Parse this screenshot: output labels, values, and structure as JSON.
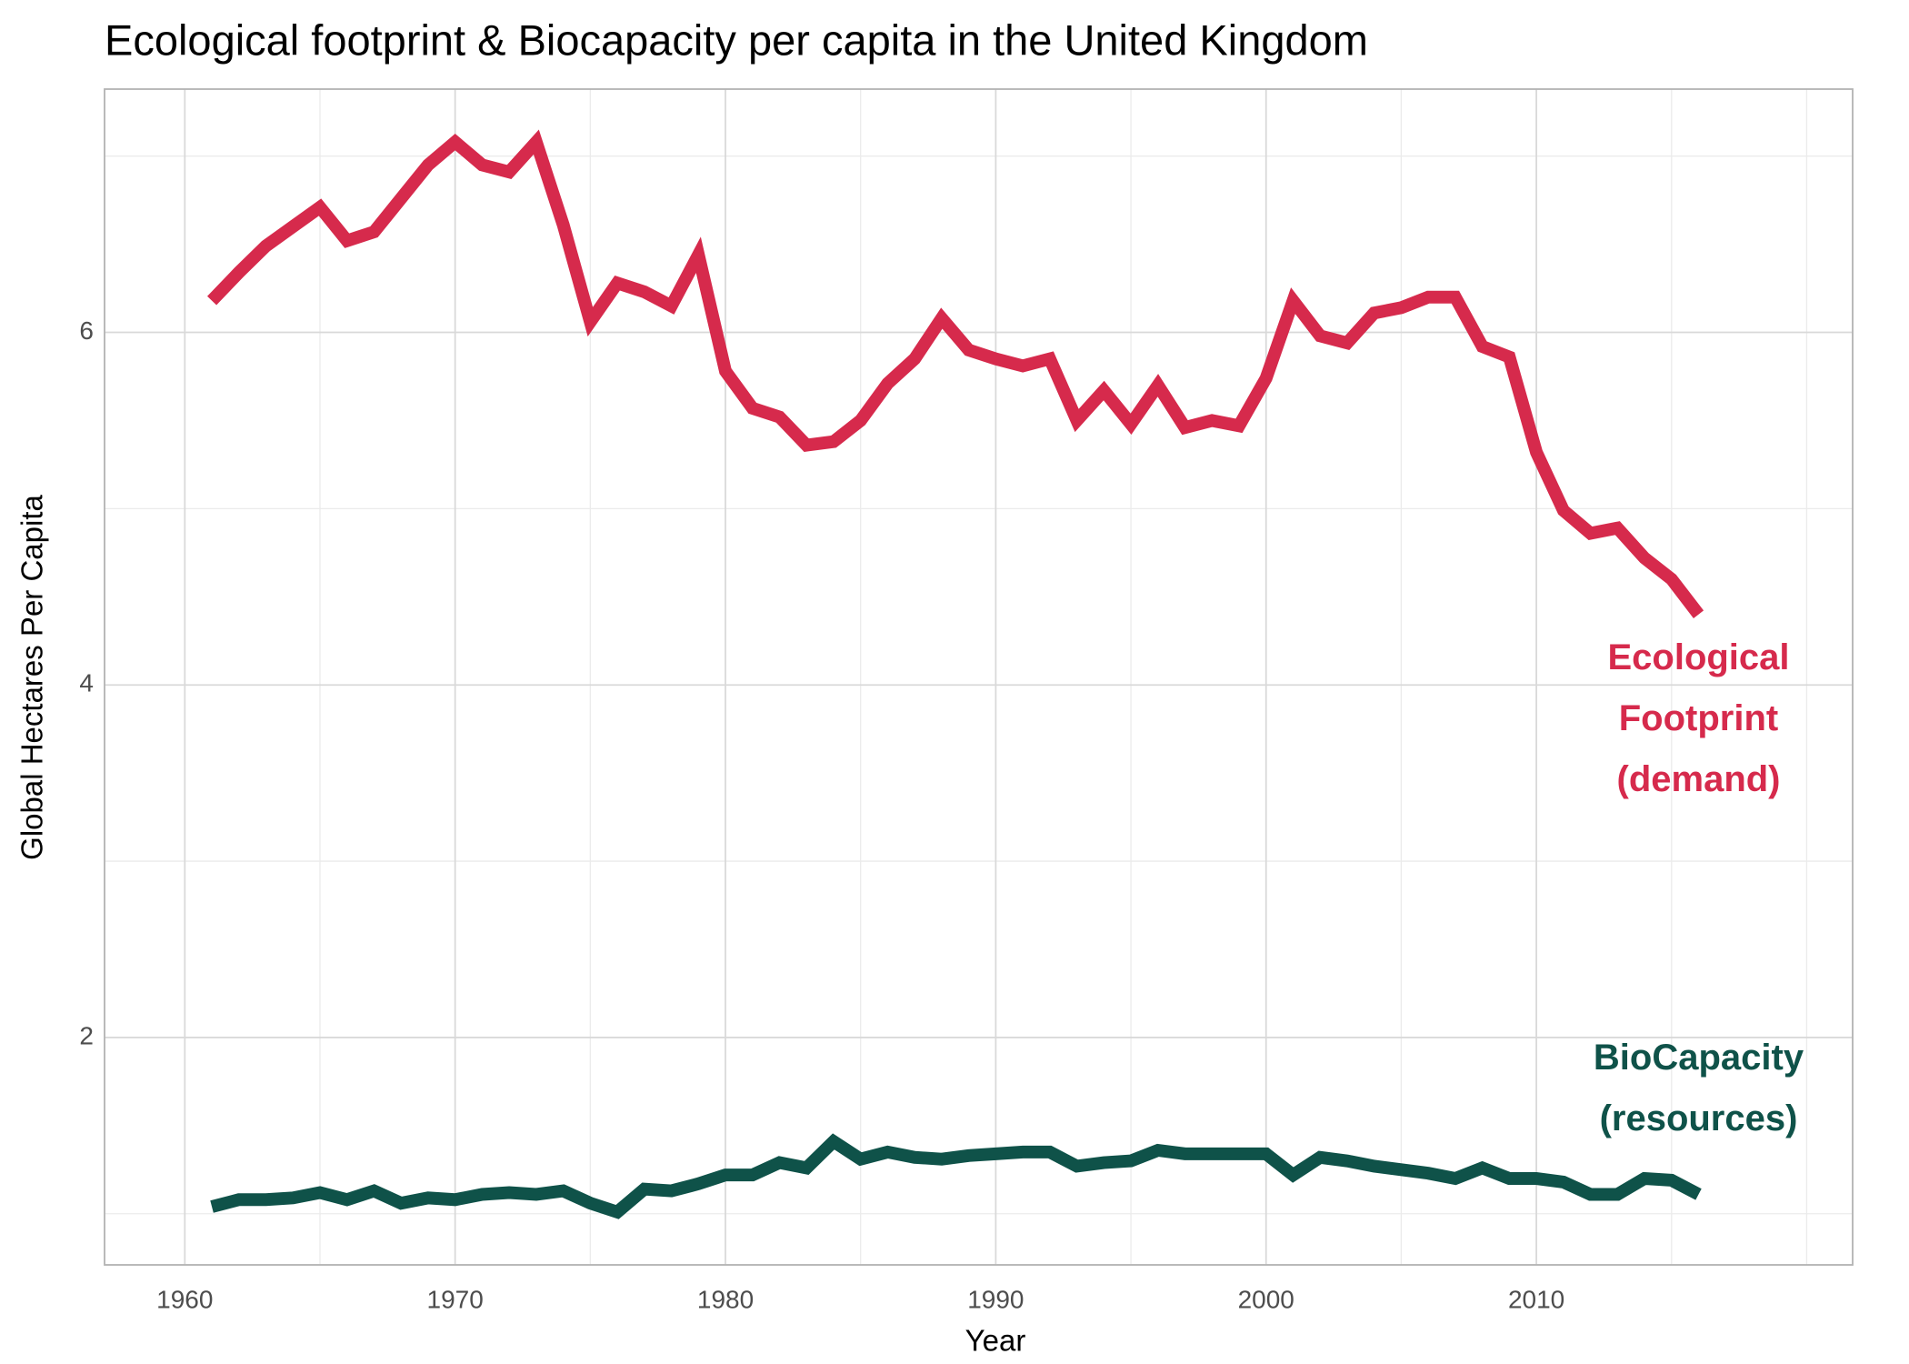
{
  "chart_data": {
    "type": "line",
    "title": "Ecological footprint & Biocapacity per capita in the United Kingdom",
    "x_label": "Year",
    "y_label": "Global Hectares Per Capita",
    "x": [
      1961,
      1962,
      1963,
      1964,
      1965,
      1966,
      1967,
      1968,
      1969,
      1970,
      1971,
      1972,
      1973,
      1974,
      1975,
      1976,
      1977,
      1978,
      1979,
      1980,
      1981,
      1982,
      1983,
      1984,
      1985,
      1986,
      1987,
      1988,
      1989,
      1990,
      1991,
      1992,
      1993,
      1994,
      1995,
      1996,
      1997,
      1998,
      1999,
      2000,
      2001,
      2002,
      2003,
      2004,
      2005,
      2006,
      2007,
      2008,
      2009,
      2010,
      2011,
      2012,
      2013,
      2014,
      2015,
      2016
    ],
    "series": [
      {
        "name_lines": [
          "Ecological",
          "Footprint",
          "(demand)"
        ],
        "color": "#d62a4c",
        "values": [
          6.18,
          6.34,
          6.49,
          6.6,
          6.71,
          6.52,
          6.57,
          6.76,
          6.95,
          7.08,
          6.95,
          6.91,
          7.08,
          6.61,
          6.06,
          6.28,
          6.23,
          6.15,
          6.44,
          5.78,
          5.57,
          5.52,
          5.36,
          5.38,
          5.5,
          5.71,
          5.85,
          6.08,
          5.9,
          5.85,
          5.81,
          5.85,
          5.5,
          5.67,
          5.48,
          5.7,
          5.46,
          5.5,
          5.47,
          5.74,
          6.18,
          5.98,
          5.94,
          6.11,
          6.14,
          6.2,
          6.2,
          5.92,
          5.86,
          5.32,
          4.99,
          4.86,
          4.89,
          4.72,
          4.6,
          4.4
        ]
      },
      {
        "name_lines": [
          "BioCapacity",
          "(resources)"
        ],
        "color": "#0f5249",
        "values": [
          1.04,
          1.08,
          1.08,
          1.09,
          1.12,
          1.08,
          1.13,
          1.06,
          1.09,
          1.08,
          1.11,
          1.12,
          1.11,
          1.13,
          1.06,
          1.01,
          1.14,
          1.13,
          1.17,
          1.22,
          1.22,
          1.29,
          1.26,
          1.41,
          1.31,
          1.35,
          1.32,
          1.31,
          1.33,
          1.34,
          1.35,
          1.35,
          1.27,
          1.29,
          1.3,
          1.36,
          1.34,
          1.34,
          1.34,
          1.34,
          1.22,
          1.32,
          1.3,
          1.27,
          1.25,
          1.23,
          1.2,
          1.26,
          1.2,
          1.2,
          1.18,
          1.11,
          1.11,
          1.2,
          1.19,
          1.11
        ]
      }
    ],
    "xlim": [
      1957.03,
      2021.7
    ],
    "ylim": [
      0.71,
      7.38
    ],
    "xticks": [
      1960,
      1970,
      1980,
      1990,
      2000,
      2010
    ],
    "yticks": [
      2,
      4,
      6
    ],
    "x_minor_grid": [
      1965,
      1975,
      1985,
      1995,
      2005,
      2015,
      2020
    ],
    "y_minor_grid": [
      1,
      3,
      5,
      7
    ],
    "grid": true
  }
}
